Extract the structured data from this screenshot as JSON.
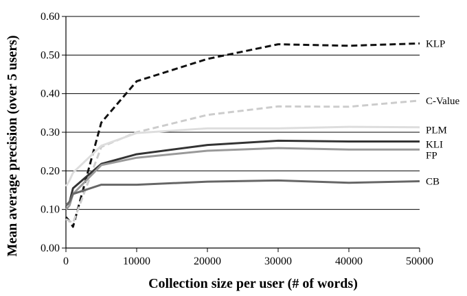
{
  "chart_data": {
    "type": "line",
    "title": "",
    "xlabel": "Collection size per user (# of words)",
    "ylabel": "Mean average precision (over 5 users)",
    "xlim": [
      0,
      50000
    ],
    "ylim": [
      0,
      0.6
    ],
    "x_ticks": [
      0,
      10000,
      20000,
      30000,
      40000,
      50000
    ],
    "x_tick_labels": [
      "0",
      "10000",
      "20000",
      "30000",
      "40000",
      "50000"
    ],
    "y_ticks": [
      0,
      0.1,
      0.2,
      0.3,
      0.4,
      0.5,
      0.6
    ],
    "y_tick_labels": [
      "0.00",
      "0.10",
      "0.20",
      "0.30",
      "0.40",
      "0.50",
      "0.60"
    ],
    "grid": "horizontal",
    "legend": "labels at line ends (right)",
    "series": [
      {
        "name": "KLP",
        "color": "#111111",
        "dashed": true,
        "points": [
          [
            0,
            0.08
          ],
          [
            500,
            0.07
          ],
          [
            1000,
            0.055
          ],
          [
            5000,
            0.325
          ],
          [
            10000,
            0.432
          ],
          [
            20000,
            0.49
          ],
          [
            30000,
            0.528
          ],
          [
            40000,
            0.524
          ],
          [
            50000,
            0.53
          ]
        ]
      },
      {
        "name": "C-Value",
        "color": "#cccccc",
        "dashed": true,
        "points": [
          [
            0,
            0.075
          ],
          [
            500,
            0.07
          ],
          [
            1000,
            0.065
          ],
          [
            5000,
            0.262
          ],
          [
            10000,
            0.3
          ],
          [
            20000,
            0.345
          ],
          [
            30000,
            0.367
          ],
          [
            40000,
            0.366
          ],
          [
            50000,
            0.382
          ]
        ]
      },
      {
        "name": "PLM",
        "color": "#dddddd",
        "dashed": false,
        "points": [
          [
            0,
            0.16
          ],
          [
            500,
            0.175
          ],
          [
            1000,
            0.195
          ],
          [
            5000,
            0.265
          ],
          [
            10000,
            0.298
          ],
          [
            20000,
            0.31
          ],
          [
            30000,
            0.31
          ],
          [
            40000,
            0.314
          ],
          [
            50000,
            0.313
          ]
        ]
      },
      {
        "name": "KLI",
        "color": "#333333",
        "dashed": false,
        "points": [
          [
            0,
            0.11
          ],
          [
            500,
            0.118
          ],
          [
            1000,
            0.155
          ],
          [
            5000,
            0.218
          ],
          [
            10000,
            0.243
          ],
          [
            20000,
            0.267
          ],
          [
            30000,
            0.278
          ],
          [
            40000,
            0.276
          ],
          [
            50000,
            0.276
          ]
        ]
      },
      {
        "name": "FP",
        "color": "#999999",
        "dashed": false,
        "points": [
          [
            0,
            0.1
          ],
          [
            500,
            0.11
          ],
          [
            1000,
            0.14
          ],
          [
            5000,
            0.215
          ],
          [
            10000,
            0.234
          ],
          [
            20000,
            0.252
          ],
          [
            30000,
            0.259
          ],
          [
            40000,
            0.255
          ],
          [
            50000,
            0.255
          ]
        ]
      },
      {
        "name": "CB",
        "color": "#666666",
        "dashed": false,
        "points": [
          [
            0,
            0.11
          ],
          [
            500,
            0.12
          ],
          [
            1000,
            0.14
          ],
          [
            5000,
            0.164
          ],
          [
            10000,
            0.164
          ],
          [
            20000,
            0.172
          ],
          [
            30000,
            0.175
          ],
          [
            40000,
            0.169
          ],
          [
            50000,
            0.173
          ]
        ]
      }
    ]
  }
}
